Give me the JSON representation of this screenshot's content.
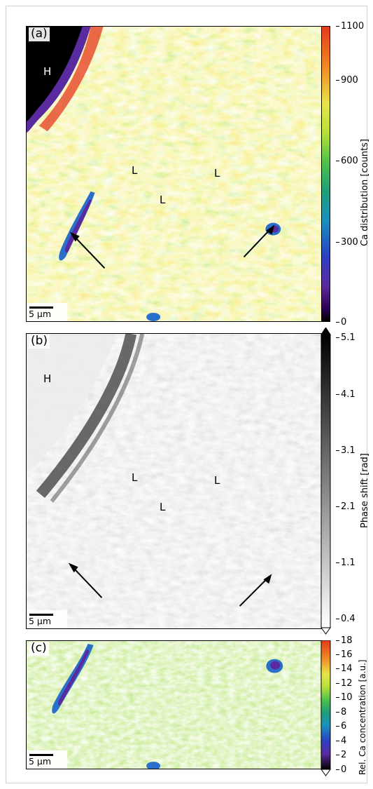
{
  "panels": [
    {
      "label": "(a)",
      "region_labels": [
        "H",
        "L",
        "L",
        "L"
      ],
      "scalebar": "5 µm",
      "colorbar": {
        "title": "Ca distribution [counts]",
        "ticks": [
          "1100",
          "900",
          "600",
          "300",
          "0"
        ],
        "colormap": "nipy_spectral"
      }
    },
    {
      "label": "(b)",
      "region_labels": [
        "H",
        "L",
        "L",
        "L"
      ],
      "scalebar": "5 µm",
      "colorbar": {
        "title": "Phase shift [rad]",
        "ticks": [
          "5.1",
          "4.1",
          "3.1",
          "2.1",
          "1.1",
          "0.4"
        ],
        "colormap": "gray_r"
      }
    },
    {
      "label": "(c)",
      "scalebar": "5 µm",
      "colorbar": {
        "title": "Rel. Ca concentration [a.u.]",
        "ticks": [
          "18",
          "16",
          "14",
          "12",
          "10",
          "8",
          "6",
          "4",
          "2",
          "0"
        ],
        "colormap": "nipy_spectral"
      }
    }
  ],
  "colors": {
    "green": "#6fcf3a",
    "yellow": "#e8e44a",
    "red": "#e53a1e",
    "blue": "#2a6fc9",
    "purple": "#5a2ba0",
    "black": "#000000"
  }
}
